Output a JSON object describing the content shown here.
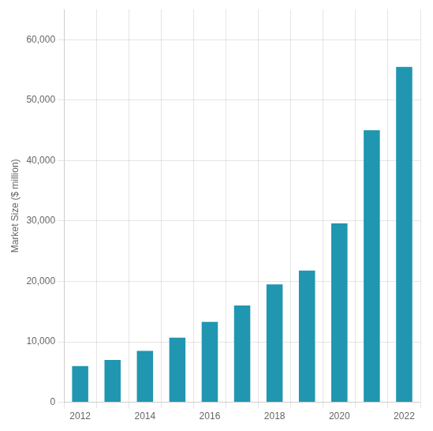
{
  "chart_data": {
    "type": "bar",
    "categories": [
      "2012",
      null,
      "2014",
      null,
      "2016",
      null,
      "2018",
      null,
      "2020",
      null,
      "2022"
    ],
    "values": [
      6000,
      7000,
      8500,
      10700,
      13300,
      16000,
      19500,
      21800,
      29600,
      45000,
      55500
    ],
    "color": "#2196B0",
    "ylabel": "Market Size ($ million)",
    "ylim": [
      0,
      65000
    ],
    "yticks": [
      0,
      {
        "value": 10000,
        "label": "10,000"
      },
      {
        "value": 20000,
        "label": "20,000"
      },
      {
        "value": 30000,
        "label": "30,000"
      },
      {
        "value": 40000,
        "label": "40,000"
      },
      {
        "value": 50000,
        "label": "50,000"
      },
      {
        "value": 60000,
        "label": "60,000"
      }
    ],
    "grid": true
  }
}
